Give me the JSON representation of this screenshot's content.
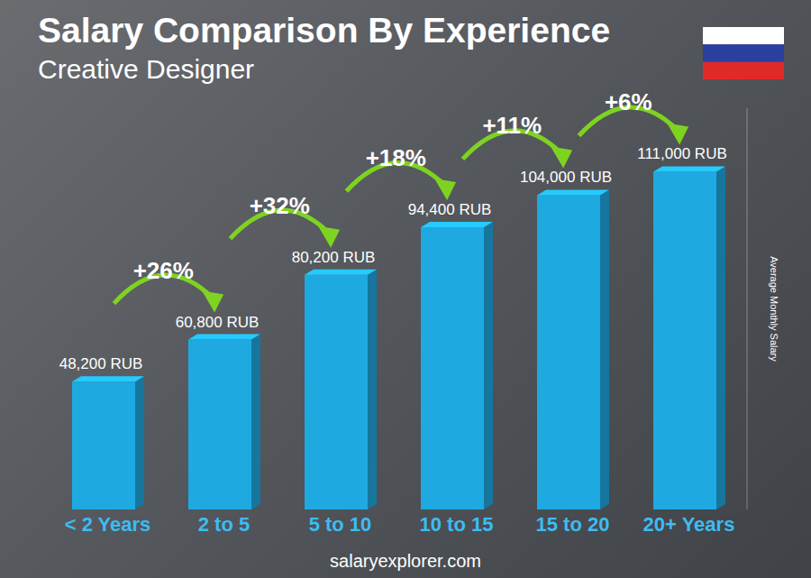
{
  "chart_data": {
    "type": "bar",
    "title": "Salary Comparison By Experience",
    "subtitle": "Creative Designer",
    "categories": [
      "< 2 Years",
      "2 to 5",
      "5 to 10",
      "10 to 15",
      "15 to 20",
      "20+ Years"
    ],
    "values": [
      48200,
      60800,
      80200,
      94400,
      104000,
      111000
    ],
    "value_labels": [
      "48,200 RUB",
      "60,800 RUB",
      "80,200 RUB",
      "94,400 RUB",
      "104,000 RUB",
      "111,000 RUB"
    ],
    "data_labels": true,
    "change_labels": [
      "+26%",
      "+32%",
      "+18%",
      "+11%",
      "+6%"
    ],
    "color": "#1fa9e1",
    "ylim": [
      10000,
      130000
    ],
    "ylabel": "Average Monthly Salary",
    "tick_labels": "x",
    "grid": false,
    "source": "salaryexplorer.com"
  }
}
